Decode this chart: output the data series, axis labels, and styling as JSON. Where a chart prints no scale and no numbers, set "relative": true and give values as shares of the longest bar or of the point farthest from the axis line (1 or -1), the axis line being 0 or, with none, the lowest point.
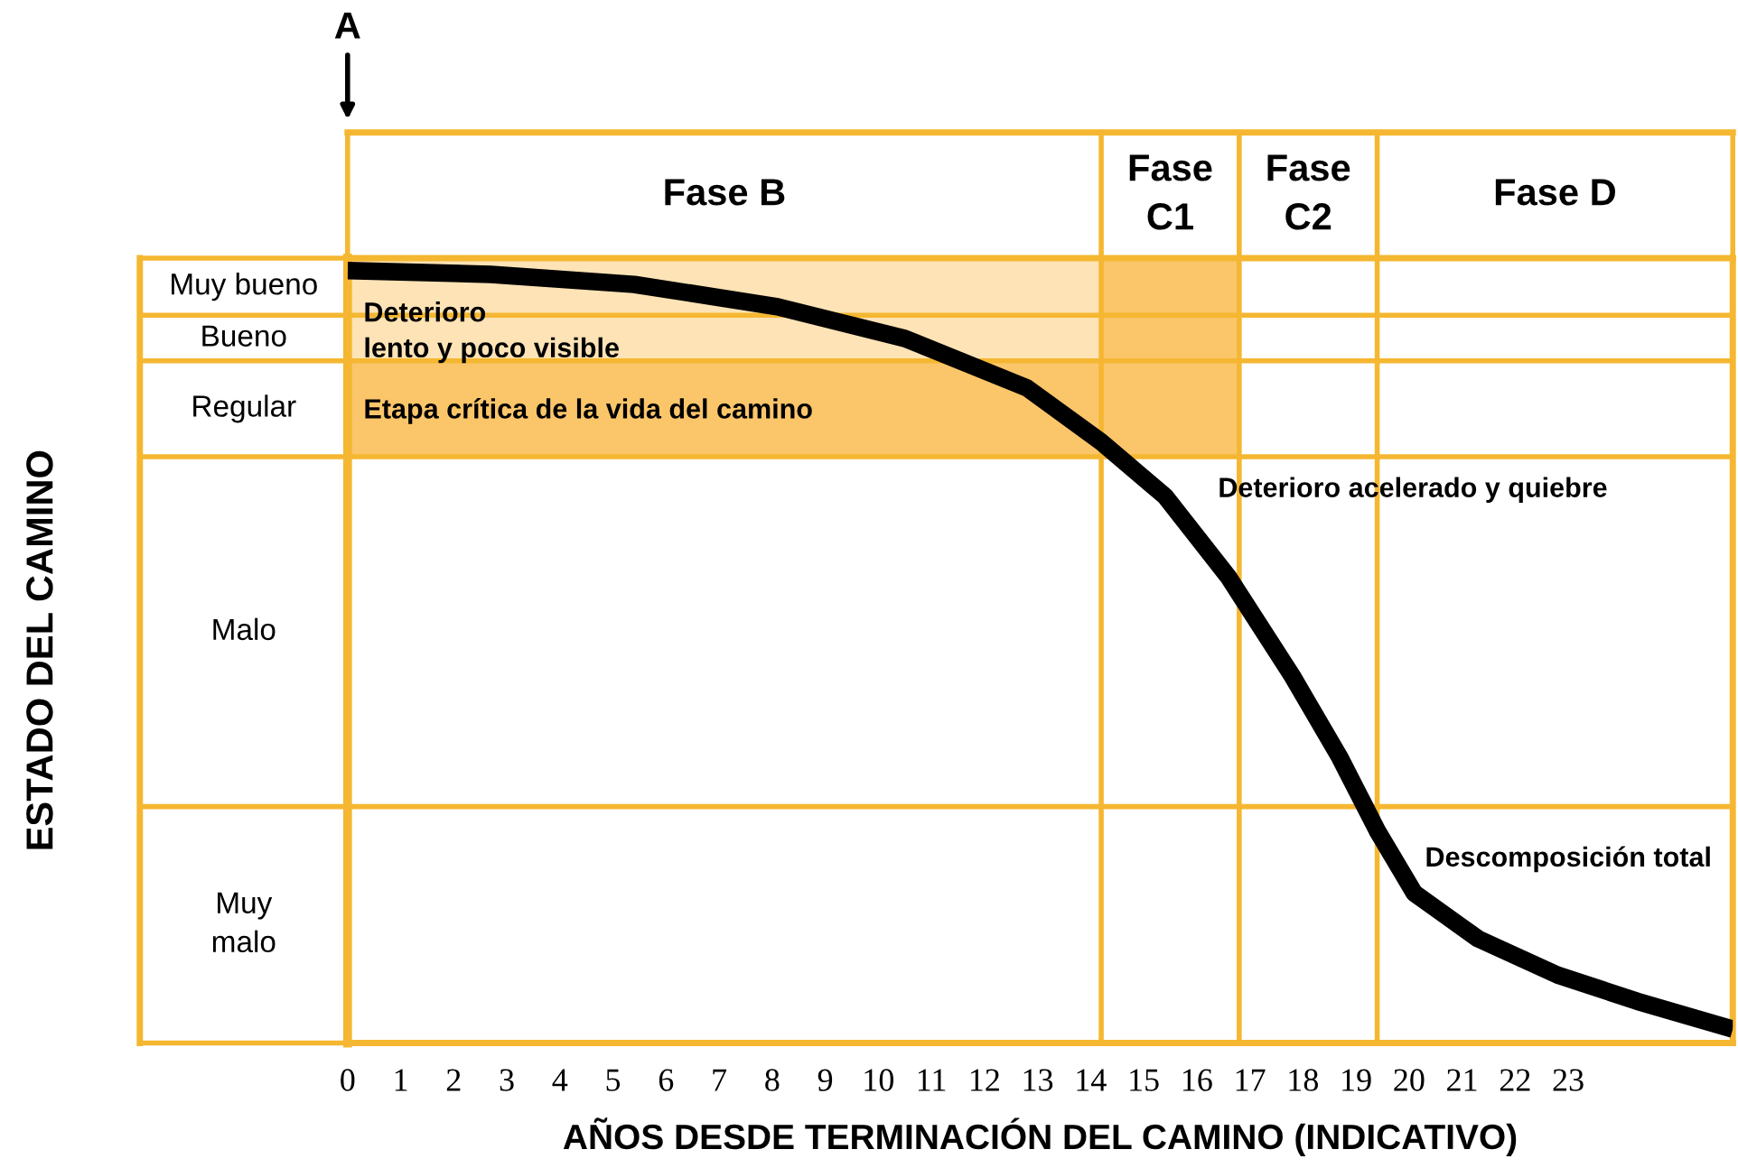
{
  "chart_data": {
    "type": "line",
    "relative": true,
    "xlabel": "AÑOS DESDE TERMINACIÓN DEL CAMINO (INDICATIVO)",
    "x": [
      0,
      2.7,
      5.4,
      8.1,
      10.5,
      12.8,
      14.2,
      15.4,
      16.6,
      17.8,
      18.7,
      19.4,
      20.1,
      21.3,
      22.8,
      24.3,
      26.1
    ],
    "series": [
      {
        "color": "#000000",
        "values": [
          1,
          0.995,
          0.982,
          0.953,
          0.912,
          0.848,
          0.778,
          0.708,
          0.603,
          0.475,
          0.369,
          0.275,
          0.194,
          0.135,
          0.088,
          0.054,
          0.018
        ]
      }
    ],
    "xlim": [
      0,
      26.1
    ],
    "xticks": [
      0,
      1,
      2,
      3,
      4,
      5,
      6,
      7,
      8,
      9,
      10,
      11,
      12,
      13,
      14,
      15,
      16,
      17,
      18,
      19,
      20,
      21,
      22,
      23
    ],
    "ref_lines": [
      {
        "axis": "y",
        "value": 0.942,
        "color": "#f5b731"
      },
      {
        "axis": "y",
        "value": 0.883,
        "color": "#f5b731"
      },
      {
        "axis": "y",
        "value": 0.759,
        "color": "#f5b731"
      },
      {
        "axis": "y",
        "value": 0.306,
        "color": "#f5b731"
      },
      {
        "axis": "x",
        "value": 14.2,
        "color": "#f5b731"
      },
      {
        "axis": "x",
        "value": 16.8,
        "color": "#f5b731"
      },
      {
        "axis": "x",
        "value": 19.4,
        "color": "#f5b731"
      }
    ],
    "annotations": [
      "A",
      "Muy bueno",
      "Bueno",
      "Regular",
      "Malo",
      "Muy\nmalo",
      "Fase B",
      "Fase\nC1",
      "Fase\nC2",
      "Fase D",
      "Deterioro\nlento y poco visible",
      "Etapa crítica de la vida del camino",
      "Deterioro acelerado y quiebre",
      "Descomposición total",
      "ESTADO DEL CAMINO"
    ],
    "line_style": "solid",
    "marker": "none",
    "grid": false,
    "legend": false
  }
}
